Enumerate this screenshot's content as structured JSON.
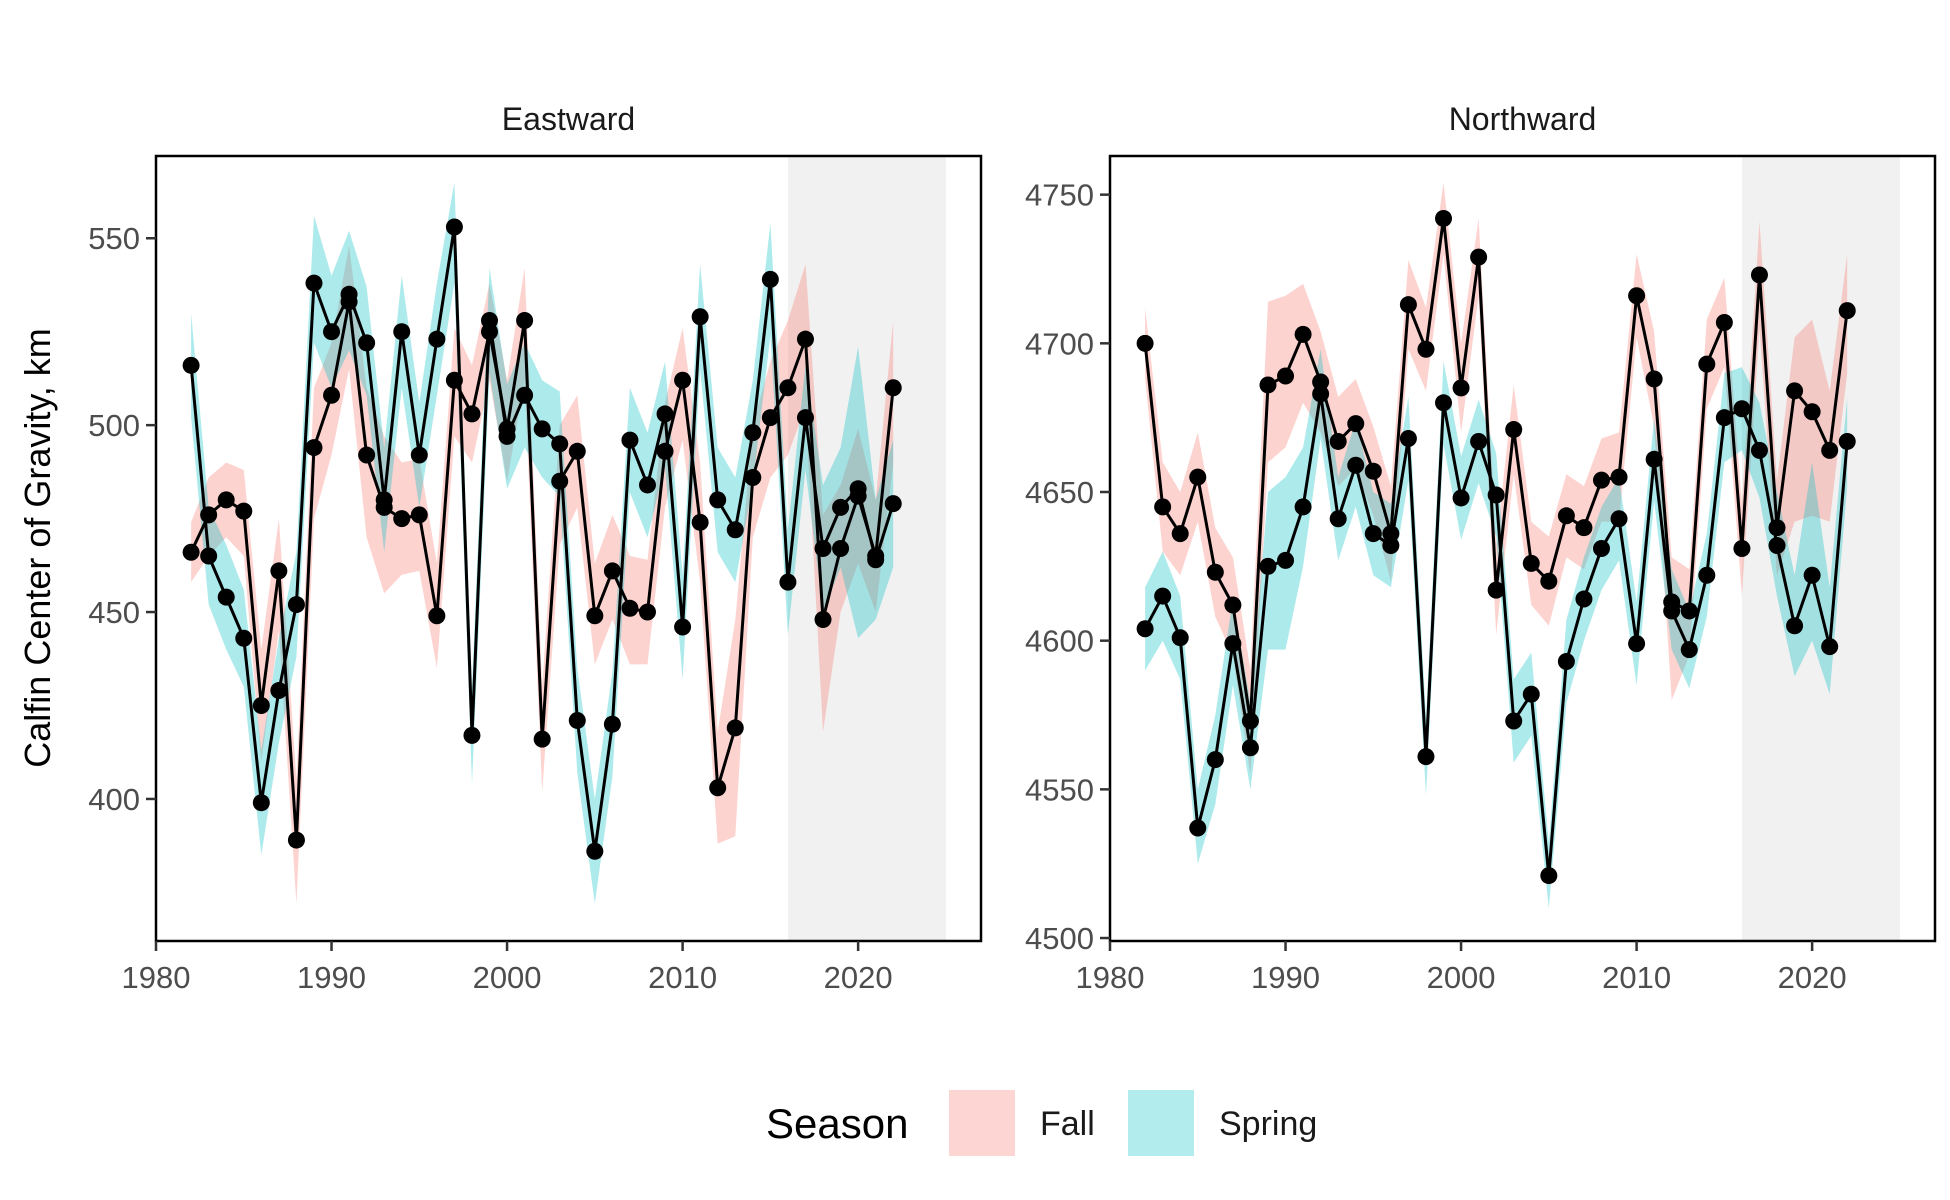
{
  "chart_data": {
    "type": "line",
    "ylabel": "Calfin Center of Gravity, km",
    "xlabel": "",
    "legend": {
      "title": "Season",
      "placement": "bottom",
      "entries": [
        {
          "name": "Fall",
          "color": "#F8766D"
        },
        {
          "name": "Spring",
          "color": "#00BFC4"
        }
      ]
    },
    "shaded_region": {
      "x": [
        2016,
        2025
      ],
      "color": "#e6e6e6"
    },
    "panels": [
      {
        "title": "Eastward",
        "xlim": [
          1980,
          2027
        ],
        "ylim": [
          362,
          572
        ],
        "xticks": [
          1980,
          1990,
          2000,
          2010,
          2020
        ],
        "yticks": [
          400,
          450,
          500,
          550
        ],
        "series": [
          {
            "name": "Fall",
            "color": "#F8766D",
            "x": [
              1982,
              1983,
              1984,
              1985,
              1986,
              1987,
              1988,
              1989,
              1990,
              1991,
              1992,
              1993,
              1994,
              1995,
              1996,
              1997,
              1998,
              1999,
              2000,
              2001,
              2002,
              2003,
              2004,
              2005,
              2006,
              2007,
              2008,
              2009,
              2010,
              2011,
              2012,
              2013,
              2014,
              2015,
              2016,
              2017,
              2018,
              2019,
              2020,
              2021,
              2022
            ],
            "y": [
              466,
              476,
              480,
              477,
              425,
              461,
              389,
              494,
              508,
              533,
              492,
              478,
              475,
              476,
              449,
              512,
              503,
              525,
              499,
              528,
              416,
              485,
              493,
              449,
              461,
              451,
              450,
              493,
              512,
              474,
              403,
              419,
              486,
              502,
              510,
              523,
              448,
              467,
              481,
              465,
              510
            ],
            "lower": [
              458,
              465,
              470,
              465,
              410,
              445,
              372,
              475,
              492,
              515,
              470,
              455,
              460,
              461,
              435,
              497,
              490,
              512,
              485,
              512,
              402,
              468,
              478,
              436,
              448,
              436,
              436,
              478,
              496,
              458,
              388,
              390,
              470,
              486,
              492,
              505,
              418,
              450,
              463,
              450,
              490
            ],
            "upper": [
              474,
              486,
              490,
              488,
              440,
              475,
              405,
              510,
              522,
              548,
              510,
              497,
              490,
              491,
              463,
              526,
              516,
              538,
              512,
              542,
              430,
              500,
              508,
              463,
              476,
              465,
              464,
              506,
              526,
              490,
              418,
              448,
              500,
              517,
              528,
              543,
              476,
              484,
              499,
              480,
              528
            ]
          },
          {
            "name": "Spring",
            "color": "#00BFC4",
            "x": [
              1982,
              1983,
              1984,
              1985,
              1986,
              1987,
              1988,
              1989,
              1990,
              1991,
              1992,
              1993,
              1994,
              1995,
              1996,
              1997,
              1998,
              1999,
              2000,
              2001,
              2002,
              2003,
              2004,
              2005,
              2006,
              2007,
              2008,
              2009,
              2010,
              2011,
              2012,
              2013,
              2014,
              2015,
              2016,
              2017,
              2018,
              2019,
              2020,
              2021,
              2022
            ],
            "y": [
              516,
              465,
              454,
              443,
              399,
              429,
              452,
              538,
              525,
              535,
              522,
              480,
              525,
              492,
              523,
              553,
              417,
              528,
              497,
              508,
              499,
              495,
              421,
              386,
              420,
              496,
              484,
              503,
              446,
              529,
              480,
              472,
              498,
              539,
              458,
              502,
              467,
              478,
              483,
              464,
              479
            ],
            "lower": [
              502,
              452,
              440,
              430,
              385,
              415,
              438,
              522,
              510,
              520,
              508,
              466,
              510,
              478,
              508,
              538,
              404,
              514,
              483,
              494,
              486,
              481,
              407,
              372,
              406,
              482,
              470,
              489,
              432,
              515,
              466,
              458,
              484,
              524,
              444,
              488,
              450,
              462,
              443,
              448,
              462
            ],
            "upper": [
              530,
              478,
              468,
              456,
              413,
              443,
              466,
              556,
              540,
              552,
              537,
              494,
              540,
              506,
              538,
              565,
              430,
              542,
              511,
              522,
              512,
              509,
              435,
              400,
              434,
              510,
              498,
              517,
              460,
              543,
              494,
              486,
              512,
              554,
              472,
              516,
              484,
              494,
              521,
              480,
              496
            ]
          }
        ]
      },
      {
        "title": "Northward",
        "xlim": [
          1980,
          2027
        ],
        "ylim": [
          4499,
          4763
        ],
        "xticks": [
          1980,
          1990,
          2000,
          2010,
          2020
        ],
        "yticks": [
          4500,
          4550,
          4600,
          4650,
          4700,
          4750
        ],
        "series": [
          {
            "name": "Fall",
            "color": "#F8766D",
            "x": [
              1982,
              1983,
              1984,
              1985,
              1986,
              1987,
              1988,
              1989,
              1990,
              1991,
              1992,
              1993,
              1994,
              1995,
              1996,
              1997,
              1998,
              1999,
              2000,
              2001,
              2002,
              2003,
              2004,
              2005,
              2006,
              2007,
              2008,
              2009,
              2010,
              2011,
              2012,
              2013,
              2014,
              2015,
              2016,
              2017,
              2018,
              2019,
              2020,
              2021,
              2022
            ],
            "y": [
              4700,
              4645,
              4636,
              4655,
              4623,
              4612,
              4573,
              4686,
              4689,
              4703,
              4687,
              4667,
              4673,
              4657,
              4636,
              4713,
              4698,
              4742,
              4685,
              4729,
              4617,
              4671,
              4626,
              4620,
              4642,
              4638,
              4654,
              4655,
              4716,
              4688,
              4613,
              4610,
              4693,
              4707,
              4631,
              4723,
              4638,
              4684,
              4677,
              4664,
              4711
            ],
            "lower": [
              4688,
              4630,
              4622,
              4640,
              4608,
              4595,
              4555,
              4660,
              4665,
              4680,
              4670,
              4652,
              4658,
              4642,
              4620,
              4698,
              4684,
              4730,
              4670,
              4716,
              4602,
              4656,
              4612,
              4605,
              4628,
              4624,
              4640,
              4640,
              4702,
              4672,
              4580,
              4595,
              4678,
              4692,
              4615,
              4705,
              4622,
              4640,
              4642,
              4640,
              4690
            ],
            "upper": [
              4712,
              4660,
              4650,
              4670,
              4638,
              4628,
              4590,
              4714,
              4716,
              4720,
              4704,
              4682,
              4688,
              4672,
              4652,
              4728,
              4712,
              4754,
              4700,
              4742,
              4632,
              4686,
              4640,
              4635,
              4656,
              4652,
              4668,
              4670,
              4730,
              4704,
              4628,
              4624,
              4708,
              4722,
              4646,
              4741,
              4654,
              4702,
              4708,
              4684,
              4730
            ]
          },
          {
            "name": "Spring",
            "color": "#00BFC4",
            "x": [
              1982,
              1983,
              1984,
              1985,
              1986,
              1987,
              1988,
              1989,
              1990,
              1991,
              1992,
              1993,
              1994,
              1995,
              1996,
              1997,
              1998,
              1999,
              2000,
              2001,
              2002,
              2003,
              2004,
              2005,
              2006,
              2007,
              2008,
              2009,
              2010,
              2011,
              2012,
              2013,
              2014,
              2015,
              2016,
              2017,
              2018,
              2019,
              2020,
              2021,
              2022
            ],
            "y": [
              4604,
              4615,
              4601,
              4537,
              4560,
              4599,
              4564,
              4625,
              4627,
              4645,
              4683,
              4641,
              4659,
              4636,
              4632,
              4668,
              4561,
              4680,
              4648,
              4667,
              4649,
              4573,
              4582,
              4521,
              4593,
              4614,
              4631,
              4641,
              4599,
              4661,
              4610,
              4597,
              4622,
              4675,
              4678,
              4664,
              4632,
              4605,
              4622,
              4598,
              4667
            ],
            "lower": [
              4590,
              4600,
              4587,
              4525,
              4545,
              4585,
              4550,
              4597,
              4597,
              4625,
              4668,
              4627,
              4645,
              4622,
              4618,
              4654,
              4548,
              4666,
              4634,
              4653,
              4635,
              4559,
              4568,
              4510,
              4579,
              4600,
              4617,
              4627,
              4585,
              4647,
              4597,
              4584,
              4608,
              4660,
              4664,
              4648,
              4615,
              4588,
              4600,
              4582,
              4652
            ],
            "upper": [
              4618,
              4630,
              4615,
              4550,
              4575,
              4614,
              4579,
              4650,
              4655,
              4665,
              4698,
              4655,
              4674,
              4650,
              4646,
              4682,
              4574,
              4694,
              4662,
              4681,
              4663,
              4587,
              4596,
              4532,
              4607,
              4628,
              4645,
              4655,
              4613,
              4675,
              4624,
              4610,
              4636,
              4690,
              4692,
              4680,
              4650,
              4622,
              4660,
              4618,
              4682
            ]
          }
        ]
      }
    ]
  }
}
